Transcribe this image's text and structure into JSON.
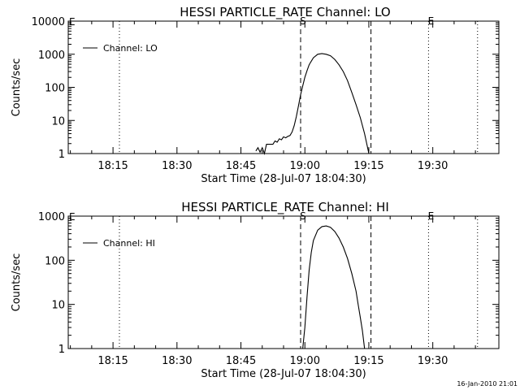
{
  "footer_timestamp": "16-Jan-2010 21:01",
  "chart_data": [
    {
      "type": "line",
      "title": "HESSI PARTICLE_RATE Channel: LO",
      "ylabel": "Counts/sec",
      "xlabel": "Start Time (28-Jul-07 18:04:30)",
      "xlim": [
        "18:04:30",
        "19:45:30"
      ],
      "ylim": [
        1,
        10000
      ],
      "yscale": "log",
      "x_ticks": [
        "18:15",
        "18:30",
        "18:45",
        "19:00",
        "19:15",
        "19:30"
      ],
      "y_ticks": [
        "1",
        "10",
        "100",
        "1000",
        "10000"
      ],
      "legend": "top-left",
      "series": [
        {
          "name": "Channel: LO",
          "x": [
            "18:48:30",
            "18:49:00",
            "18:49:30",
            "18:50:00",
            "18:50:30",
            "18:51:00",
            "18:51:30",
            "18:52:00",
            "18:52:30",
            "18:53:00",
            "18:53:30",
            "18:54:00",
            "18:54:30",
            "18:55:00",
            "18:55:30",
            "18:56:00",
            "18:56:30",
            "18:57:00",
            "18:57:30",
            "18:58:00",
            "18:58:30",
            "18:59:00",
            "18:59:30",
            "19:00:00",
            "19:00:30",
            "19:01:00",
            "19:02:00",
            "19:03:00",
            "19:04:00",
            "19:05:00",
            "19:06:00",
            "19:07:00",
            "19:08:00",
            "19:09:00",
            "19:10:00",
            "19:11:00",
            "19:12:00",
            "19:13:00",
            "19:14:00",
            "19:15:00"
          ],
          "values": [
            1.2,
            1.5,
            1.1,
            1.5,
            1.0,
            1.9,
            1.9,
            1.9,
            1.9,
            2.4,
            2.2,
            2.8,
            2.6,
            3.2,
            3.0,
            3.3,
            3.5,
            4.5,
            7,
            13,
            28,
            60,
            110,
            200,
            320,
            480,
            780,
            1000,
            1050,
            1000,
            900,
            700,
            480,
            300,
            160,
            70,
            30,
            12,
            4,
            1
          ]
        }
      ],
      "markers": [
        {
          "label": "S",
          "time": "18:59:00",
          "style": "dashed"
        },
        {
          "label": "",
          "time": "19:15:30",
          "style": "dashed"
        },
        {
          "label": "E",
          "time": "19:29:00",
          "style": "dotted"
        },
        {
          "label": "",
          "time": "18:16:30",
          "style": "dotted"
        },
        {
          "label": "",
          "time": "19:40:30",
          "style": "dotted"
        }
      ],
      "corner_mark": "E"
    },
    {
      "type": "line",
      "title": "HESSI PARTICLE_RATE Channel: HI",
      "ylabel": "Counts/sec",
      "xlabel": "Start Time (28-Jul-07 18:04:30)",
      "xlim": [
        "18:04:30",
        "19:45:30"
      ],
      "ylim": [
        1,
        1000
      ],
      "yscale": "log",
      "x_ticks": [
        "18:15",
        "18:30",
        "18:45",
        "19:00",
        "19:15",
        "19:30"
      ],
      "y_ticks": [
        "1",
        "10",
        "100",
        "1000"
      ],
      "legend": "top-left",
      "series": [
        {
          "name": "Channel: HI",
          "x": [
            "18:59:30",
            "19:00:00",
            "19:00:30",
            "19:01:00",
            "19:01:30",
            "19:02:00",
            "19:03:00",
            "19:04:00",
            "19:05:00",
            "19:06:00",
            "19:07:00",
            "19:08:00",
            "19:09:00",
            "19:10:00",
            "19:11:00",
            "19:12:00",
            "19:12:30",
            "19:13:00",
            "19:13:30",
            "19:14:00"
          ],
          "values": [
            1,
            3,
            15,
            60,
            150,
            280,
            480,
            580,
            600,
            560,
            450,
            320,
            200,
            110,
            50,
            20,
            10,
            5,
            2.5,
            1
          ]
        }
      ],
      "markers": [
        {
          "label": "S",
          "time": "18:59:00",
          "style": "dashed"
        },
        {
          "label": "",
          "time": "19:15:30",
          "style": "dashed"
        },
        {
          "label": "E",
          "time": "19:29:00",
          "style": "dotted"
        },
        {
          "label": "",
          "time": "18:16:30",
          "style": "dotted"
        },
        {
          "label": "",
          "time": "19:40:30",
          "style": "dotted"
        }
      ],
      "corner_mark": "E"
    }
  ]
}
